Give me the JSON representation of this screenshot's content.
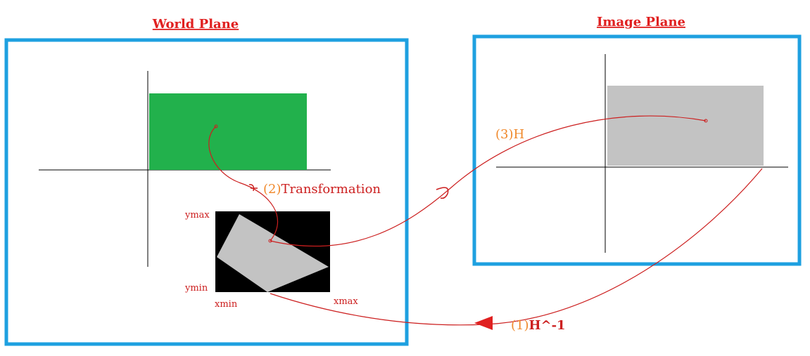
{
  "world_plane": {
    "title": "World Plane",
    "axis_labels": {
      "ymax": "ymax",
      "ymin": "ymin",
      "xmin": "xmin",
      "xmax": "xmax"
    }
  },
  "image_plane": {
    "title": "Image Plane"
  },
  "steps": {
    "one_num": "(1)",
    "one_text": "H^-1",
    "two_num": "(2)",
    "two_text": "Transformation",
    "three_num": "(3)",
    "three_text": "H"
  },
  "colors": {
    "frame": "#1ea0e0",
    "title": "#e02020",
    "green_rect": "#22b14c",
    "gray_rect": "#c3c3c3",
    "black_rect": "#000000",
    "curve": "#cc1f1f",
    "step_number": "#f0882a",
    "step_text": "#cc1f1f"
  }
}
